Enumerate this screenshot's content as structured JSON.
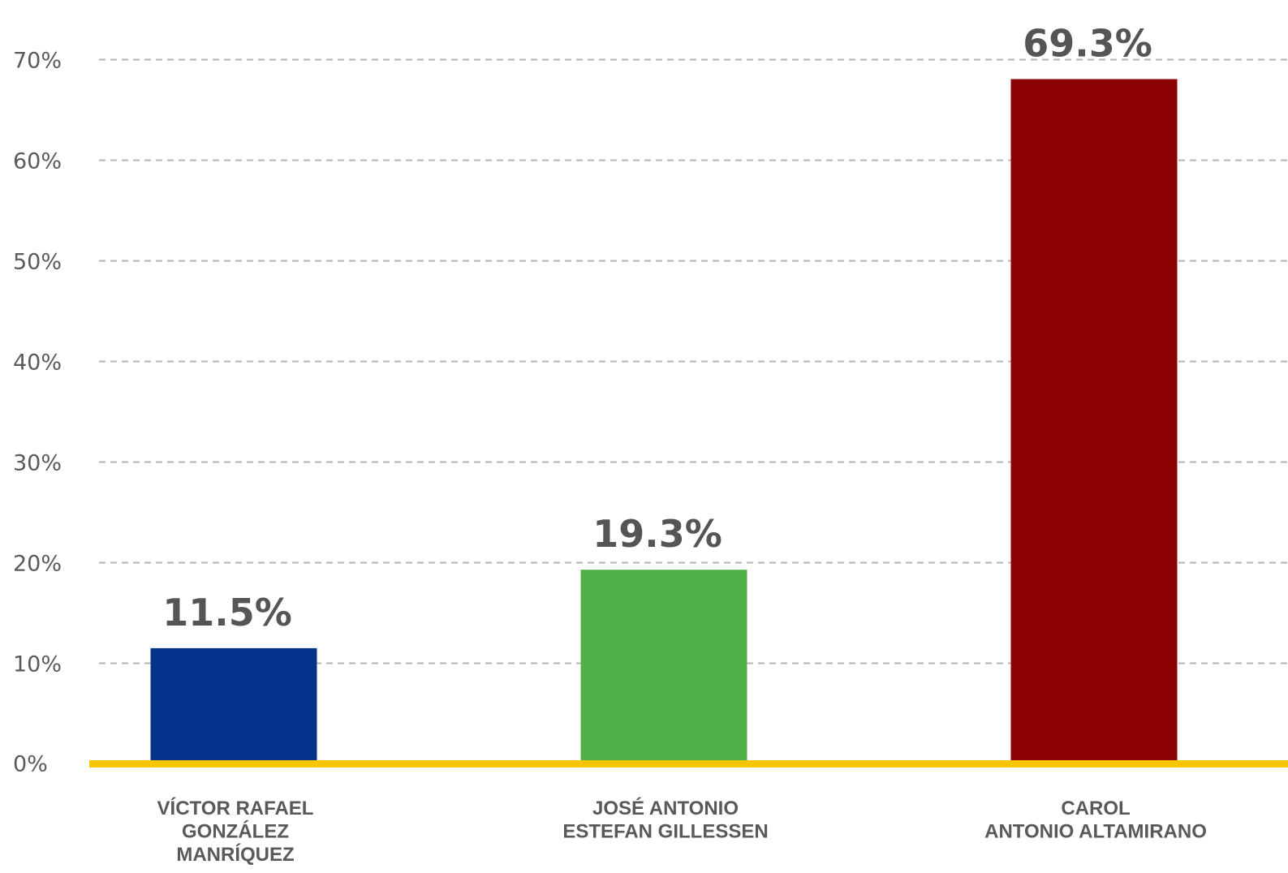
{
  "chart_data": {
    "type": "bar",
    "title": "",
    "xlabel": "",
    "ylabel": "",
    "categories": [
      [
        "VÍCTOR RAFAEL",
        "GONZÁLEZ",
        "MANRÍQUEZ"
      ],
      [
        "JOSÉ ANTONIO",
        "ESTEFAN GILLESSEN"
      ],
      [
        "CAROL",
        "ANTONIO ALTAMIRANO"
      ]
    ],
    "values": [
      11.5,
      19.3,
      69.3
    ],
    "value_labels": [
      "11.5%",
      "19.3%",
      "69.3%"
    ],
    "colors": [
      "#06328c",
      "#50b047",
      "#8b0000"
    ],
    "ylim": [
      0,
      70
    ],
    "yticks": [
      0,
      10,
      20,
      30,
      40,
      50,
      60,
      70
    ],
    "ytick_labels": [
      "0%",
      "10%",
      "20%",
      "30%",
      "40%",
      "50%",
      "60%",
      "70%"
    ],
    "grid": "dashed horizontal",
    "grid_color": "#b4b4b4",
    "baseline_color": "#f7c600",
    "legend": "none"
  }
}
